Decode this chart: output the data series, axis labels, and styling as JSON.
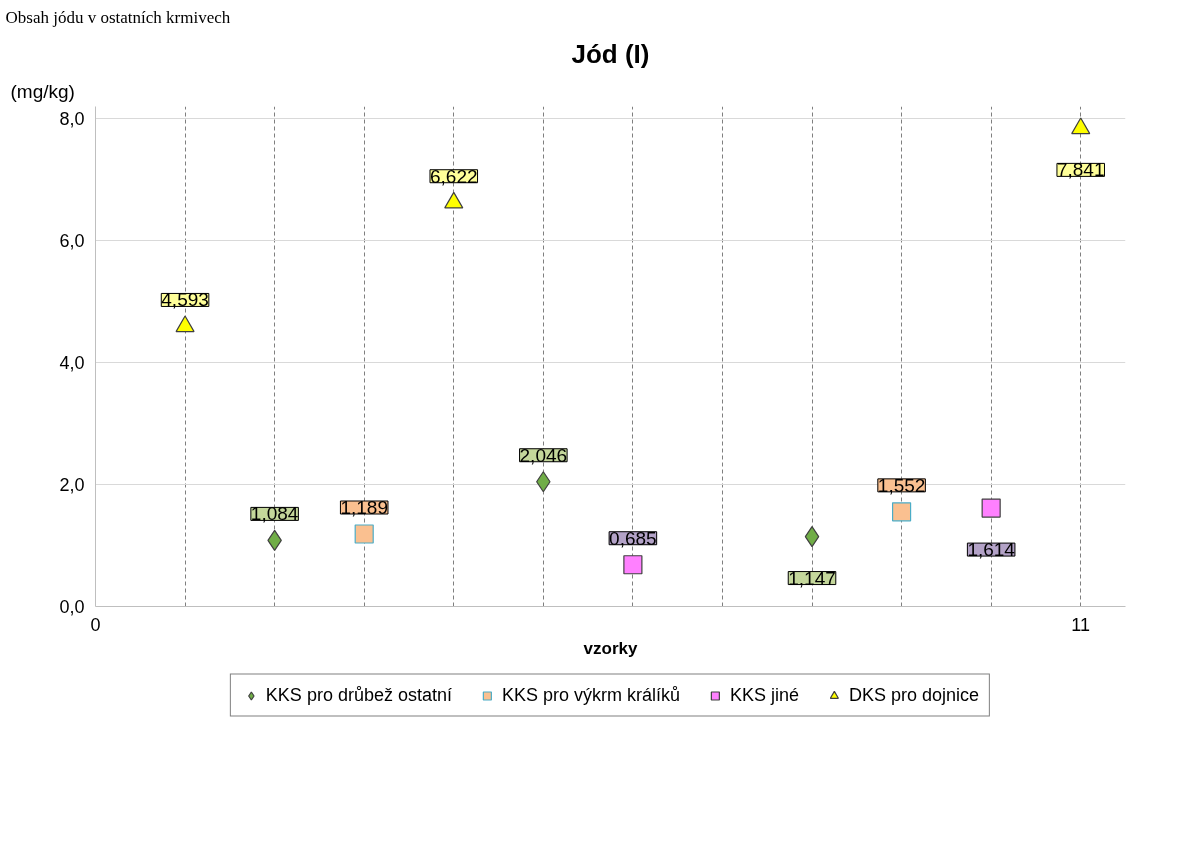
{
  "chart_data": {
    "type": "scatter",
    "title": "Jód (I)",
    "ylabel": "(mg/kg)",
    "xlabel": "vzorky",
    "annotations": [
      "Obsah jódu v ostatních krmivech"
    ],
    "xlim": [
      0,
      11.5
    ],
    "xticks": [
      0,
      {
        "value": 1,
        "label": null
      },
      {
        "value": 2,
        "label": null
      },
      {
        "value": 3,
        "label": null
      },
      {
        "value": 4,
        "label": null
      },
      {
        "value": 5,
        "label": null
      },
      {
        "value": 6,
        "label": null
      },
      {
        "value": 7,
        "label": null
      },
      {
        "value": 8,
        "label": null
      },
      {
        "value": 9,
        "label": null
      },
      {
        "value": 10,
        "label": null
      },
      11
    ],
    "ylim": [
      0,
      8.2
    ],
    "yticks": [
      {
        "value": 0,
        "label": "0,0"
      },
      {
        "value": 2,
        "label": "2,0"
      },
      {
        "value": 4,
        "label": "4,0"
      },
      {
        "value": 6,
        "label": "6,0"
      },
      {
        "value": 8,
        "label": "8,0"
      }
    ],
    "grid": true,
    "legend": "bottom",
    "series": [
      {
        "name": "KKS pro drůbež ostatní",
        "color": "#70ad47",
        "marker": "diamond",
        "x": [
          2,
          5,
          8
        ],
        "values": [
          1.084,
          2.046,
          1.147
        ],
        "value_labels": [
          "1,084",
          "2,046",
          "1,147"
        ]
      },
      {
        "name": "KKS pro výkrm králíků",
        "color": "#fac090",
        "marker": "square",
        "x": [
          3,
          9
        ],
        "values": [
          1.189,
          1.552
        ],
        "value_labels": [
          "1,189",
          "1,552"
        ]
      },
      {
        "name": "KKS jiné",
        "color": "#ff80ff",
        "marker": "square",
        "x": [
          6,
          10
        ],
        "values": [
          0.685,
          1.614
        ],
        "value_labels": [
          "0,685",
          "1,614"
        ]
      },
      {
        "name": "DKS pro dojnice",
        "color": "#ffff00",
        "marker": "triangle",
        "x": [
          1,
          4,
          11
        ],
        "values": [
          4.593,
          6.622,
          7.841
        ],
        "value_labels": [
          "4,593",
          "6,622",
          "7,841"
        ]
      }
    ]
  }
}
